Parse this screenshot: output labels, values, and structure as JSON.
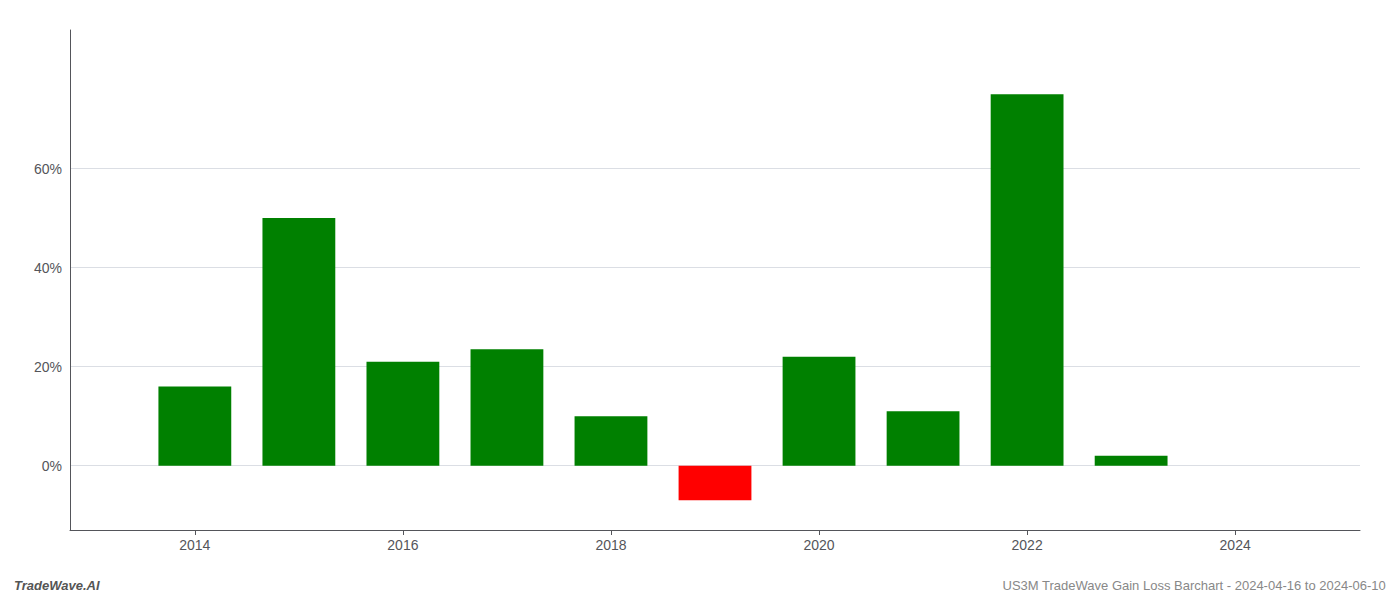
{
  "chart_data": {
    "type": "bar",
    "x": [
      2014,
      2015,
      2016,
      2017,
      2018,
      2019,
      2020,
      2021,
      2022,
      2023
    ],
    "values": [
      0.16,
      0.5,
      0.21,
      0.235,
      0.1,
      -0.07,
      0.22,
      0.11,
      0.75,
      0.02
    ],
    "colors": [
      "#008000",
      "#008000",
      "#008000",
      "#008000",
      "#008000",
      "#ff0000",
      "#008000",
      "#008000",
      "#008000",
      "#008000"
    ],
    "xlim": [
      2012.8,
      2025.2
    ],
    "xticks": [
      2014,
      2016,
      2018,
      2020,
      2022,
      2024
    ],
    "ylim": [
      -0.13,
      0.88
    ],
    "yticks": [
      {
        "value": 0.0,
        "label": "0%"
      },
      {
        "value": 0.2,
        "label": "20%"
      },
      {
        "value": 0.4,
        "label": "40%"
      },
      {
        "value": 0.6,
        "label": "60%"
      }
    ],
    "grid": true,
    "annotations": [
      "TradeWave.AI",
      "US3M TradeWave Gain Loss Barchart - 2024-04-16 to 2024-06-10"
    ]
  }
}
